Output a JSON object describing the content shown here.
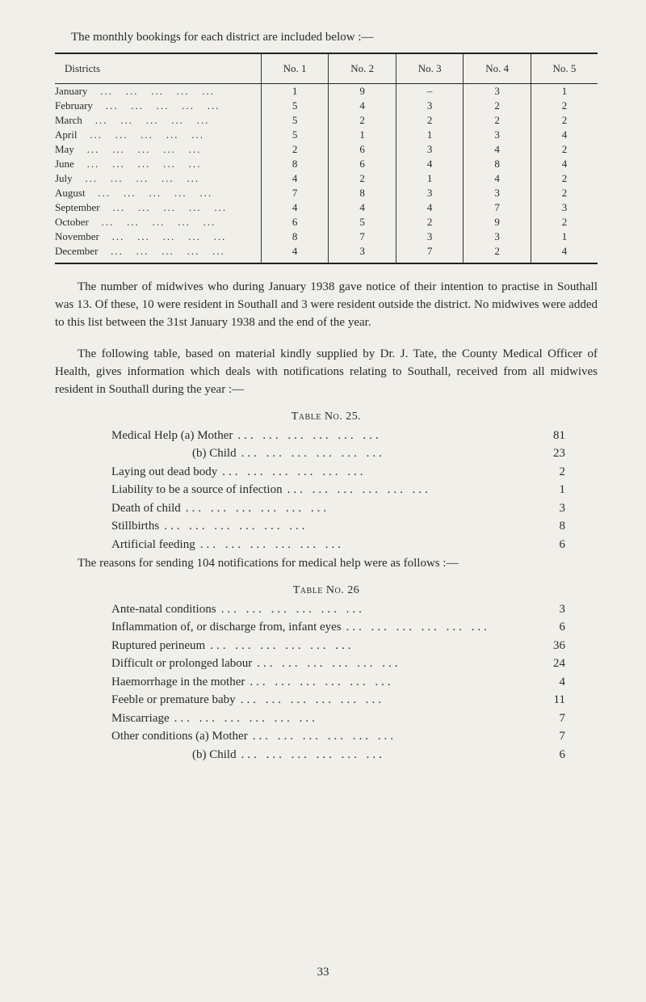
{
  "intro": "The monthly bookings for each district are included below :—",
  "table1": {
    "headers": [
      "Districts",
      "No. 1",
      "No. 2",
      "No. 3",
      "No. 4",
      "No. 5"
    ],
    "rows": [
      {
        "month": "January",
        "v": [
          "1",
          "9",
          "–",
          "3",
          "1"
        ]
      },
      {
        "month": "February",
        "v": [
          "5",
          "4",
          "3",
          "2",
          "2"
        ]
      },
      {
        "month": "March",
        "v": [
          "5",
          "2",
          "2",
          "2",
          "2"
        ]
      },
      {
        "month": "April",
        "v": [
          "5",
          "1",
          "1",
          "3",
          "4"
        ]
      },
      {
        "month": "May",
        "v": [
          "2",
          "6",
          "3",
          "4",
          "2"
        ]
      },
      {
        "month": "June",
        "v": [
          "8",
          "6",
          "4",
          "8",
          "4"
        ]
      },
      {
        "month": "July",
        "v": [
          "4",
          "2",
          "1",
          "4",
          "2"
        ]
      },
      {
        "month": "August",
        "v": [
          "7",
          "8",
          "3",
          "3",
          "2"
        ]
      },
      {
        "month": "September",
        "v": [
          "4",
          "4",
          "4",
          "7",
          "3"
        ]
      },
      {
        "month": "October",
        "v": [
          "6",
          "5",
          "2",
          "9",
          "2"
        ]
      },
      {
        "month": "November",
        "v": [
          "8",
          "7",
          "3",
          "3",
          "1"
        ]
      },
      {
        "month": "December",
        "v": [
          "4",
          "3",
          "7",
          "2",
          "4"
        ]
      }
    ]
  },
  "para1": "The number of midwives who during January 1938 gave notice of their intention to practise in Southall was 13. Of these, 10 were resident in Southall and 3 were resident outside the district. No midwives were added to this list between the 31st January 1938 and the end of the year.",
  "para2": "The following table, based on material kindly supplied by Dr. J. Tate, the County Medical Officer of Health, gives information which deals with notifications relating to Southall, received from all midwives resident in Southall during the year :—",
  "table25": {
    "title": "Table No. 25.",
    "rows": [
      {
        "label": "Medical Help (a) Mother",
        "value": "81",
        "indent": 0
      },
      {
        "label": "(b) Child",
        "value": "23",
        "indent": 1
      },
      {
        "label": "Laying out dead body",
        "value": "2",
        "indent": 0
      },
      {
        "label": "Liability to be a source of infection",
        "value": "1",
        "indent": 0
      },
      {
        "label": "Death of child",
        "value": "3",
        "indent": 0
      },
      {
        "label": "Stillbirths",
        "value": "8",
        "indent": 0
      },
      {
        "label": "Artificial feeding",
        "value": "6",
        "indent": 0
      }
    ]
  },
  "para3": "The reasons for sending 104 notifications for medical help were as follows :—",
  "table26": {
    "title": "Table No. 26",
    "rows": [
      {
        "label": "Ante-natal conditions",
        "value": "3",
        "indent": 0
      },
      {
        "label": "Inflammation of, or discharge from, infant eyes",
        "value": "6",
        "indent": 0
      },
      {
        "label": "Ruptured perineum",
        "value": "36",
        "indent": 0
      },
      {
        "label": "Difficult or prolonged labour",
        "value": "24",
        "indent": 0
      },
      {
        "label": "Haemorrhage in the mother",
        "value": "4",
        "indent": 0
      },
      {
        "label": "Feeble or premature baby",
        "value": "11",
        "indent": 0
      },
      {
        "label": "Miscarriage",
        "value": "7",
        "indent": 0
      },
      {
        "label": "Other conditions (a) Mother",
        "value": "7",
        "indent": 0
      },
      {
        "label": "(b) Child",
        "value": "6",
        "indent": 1
      }
    ]
  },
  "pageNumber": "33"
}
